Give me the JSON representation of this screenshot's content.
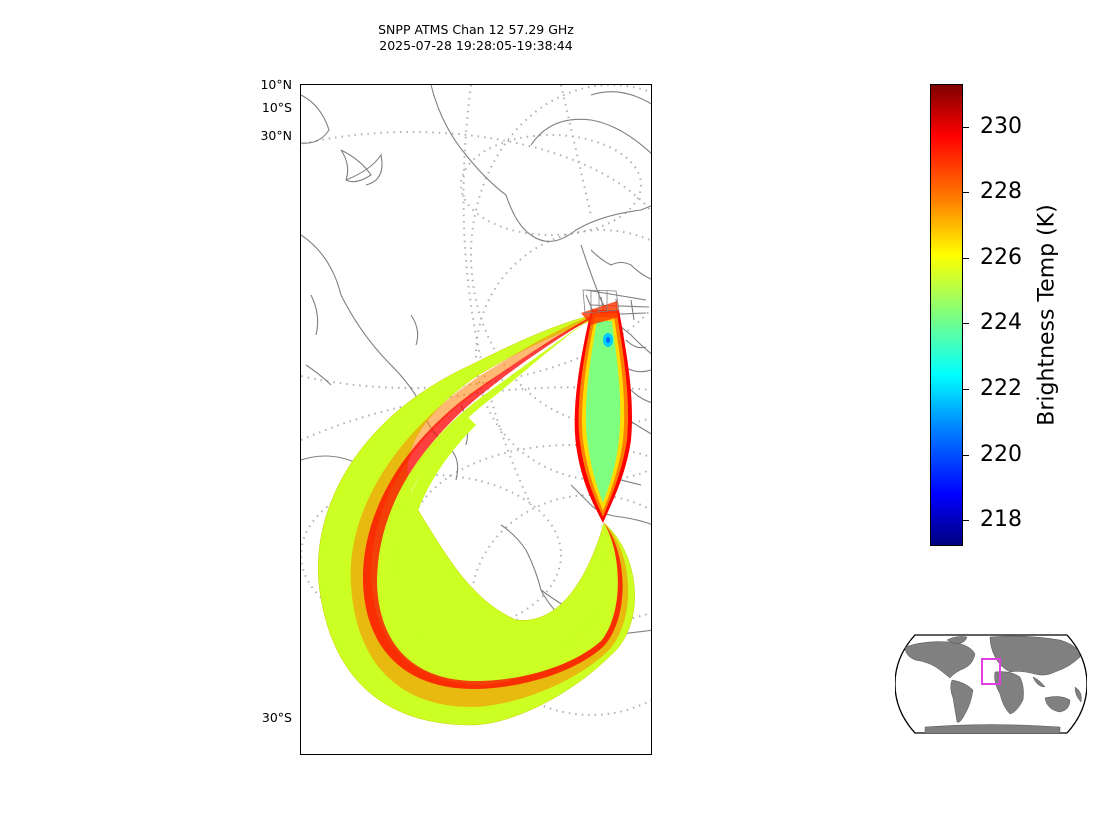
{
  "title": {
    "line1": "SNPP ATMS Chan 12 57.29 GHz",
    "line2": "2025-07-28 19:28:05-19:38:44"
  },
  "map": {
    "lat_labels": [
      "10°N",
      "10°S",
      "30°N",
      "30°S"
    ],
    "swath_fill_color": "#ccff22",
    "edge_colors": [
      "#ff0000",
      "#ff7f00",
      "#ffcc00",
      "#7fff7f",
      "#00e5ff"
    ],
    "coastline_color": "#808080",
    "gridline_color": "#b0b0b0",
    "gridline_style": "dotted"
  },
  "colorbar": {
    "label": "Brightness Temp (K)",
    "ticks": [
      "230",
      "228",
      "226",
      "224",
      "222",
      "220",
      "218"
    ],
    "range": [
      217.3,
      231.3
    ],
    "colormap": "jet"
  },
  "inset_map": {
    "land_color": "#808080",
    "box_color": "#e040e0",
    "projection": "robinson"
  }
}
